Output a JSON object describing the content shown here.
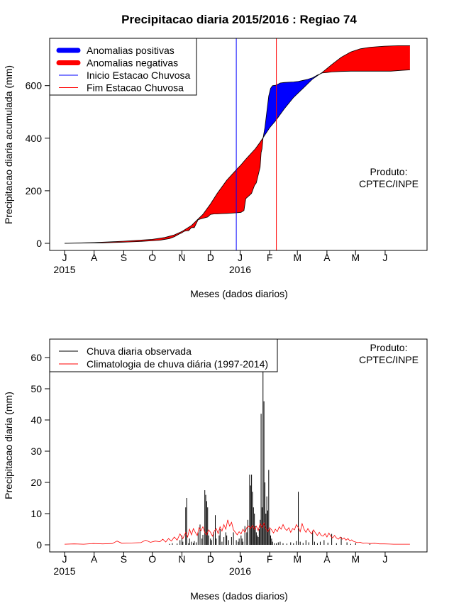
{
  "title": "Precipitacao diaria 2015/2016 : Regiao 74",
  "credit": {
    "line1": "Produto:",
    "line2": "CPTEC/INPE"
  },
  "colors": {
    "positive": "#0000ff",
    "negative": "#ff0000",
    "onset": "#0000ff",
    "end": "#ff0000",
    "observed": "#000000",
    "climatology": "#ff0000"
  },
  "month_ticks": [
    {
      "label": "J",
      "day": 0
    },
    {
      "label": "A",
      "day": 31
    },
    {
      "label": "S",
      "day": 62
    },
    {
      "label": "O",
      "day": 92
    },
    {
      "label": "N",
      "day": 123
    },
    {
      "label": "D",
      "day": 153
    },
    {
      "label": "J",
      "day": 184
    },
    {
      "label": "F",
      "day": 215
    },
    {
      "label": "M",
      "day": 244
    },
    {
      "label": "A",
      "day": 275
    },
    {
      "label": "M",
      "day": 305
    },
    {
      "label": "J",
      "day": 336
    }
  ],
  "year_labels": [
    {
      "label": "2015",
      "day": 0
    },
    {
      "label": "2016",
      "day": 184
    }
  ],
  "chart_data": [
    {
      "type": "area",
      "ylabel": "Precipitacao diaria acumulada (mm)",
      "xlabel": "Meses (dados diarios)",
      "ylim": [
        0,
        750
      ],
      "yticks": [
        0,
        200,
        400,
        600
      ],
      "legend": {
        "position": "top-left",
        "entries": [
          {
            "label": "Anomalias positivas",
            "key": "positive",
            "style": "thick"
          },
          {
            "label": "Anomalias negativas",
            "key": "negative",
            "style": "thick"
          },
          {
            "label": "Inicio Estacao Chuvosa",
            "key": "onset",
            "style": "thin"
          },
          {
            "label": "Fim Estacao Chuvosa",
            "key": "end",
            "style": "thin"
          }
        ]
      },
      "onset_day": 180,
      "end_day": 222,
      "observed_accum": [
        [
          0,
          0
        ],
        [
          40,
          2
        ],
        [
          60,
          4
        ],
        [
          80,
          7
        ],
        [
          100,
          12
        ],
        [
          110,
          18
        ],
        [
          115,
          25
        ],
        [
          120,
          35
        ],
        [
          123,
          40
        ],
        [
          125,
          45
        ],
        [
          128,
          48
        ],
        [
          130,
          48
        ],
        [
          133,
          60
        ],
        [
          136,
          60
        ],
        [
          140,
          90
        ],
        [
          142,
          92
        ],
        [
          145,
          95
        ],
        [
          150,
          100
        ],
        [
          153,
          110
        ],
        [
          157,
          112
        ],
        [
          160,
          112
        ],
        [
          165,
          113
        ],
        [
          170,
          114
        ],
        [
          180,
          116
        ],
        [
          185,
          118
        ],
        [
          188,
          125
        ],
        [
          190,
          170
        ],
        [
          193,
          180
        ],
        [
          196,
          190
        ],
        [
          199,
          220
        ],
        [
          201,
          230
        ],
        [
          203,
          260
        ],
        [
          205,
          290
        ],
        [
          206,
          345
        ],
        [
          207,
          360
        ],
        [
          208,
          400
        ],
        [
          210,
          440
        ],
        [
          212,
          500
        ],
        [
          214,
          560
        ],
        [
          216,
          590
        ],
        [
          218,
          600
        ],
        [
          222,
          602
        ],
        [
          226,
          610
        ],
        [
          230,
          612
        ],
        [
          240,
          614
        ],
        [
          245,
          616
        ],
        [
          250,
          620
        ],
        [
          255,
          624
        ],
        [
          260,
          630
        ],
        [
          265,
          640
        ],
        [
          270,
          648
        ],
        [
          275,
          650
        ],
        [
          280,
          652
        ],
        [
          290,
          654
        ],
        [
          300,
          655
        ],
        [
          320,
          655
        ],
        [
          335,
          655
        ],
        [
          342,
          655
        ],
        [
          353,
          658
        ],
        [
          362,
          660
        ]
      ],
      "climatology_accum": [
        [
          0,
          0
        ],
        [
          31,
          3
        ],
        [
          62,
          8
        ],
        [
          92,
          15
        ],
        [
          105,
          22
        ],
        [
          115,
          32
        ],
        [
          123,
          45
        ],
        [
          133,
          68
        ],
        [
          145,
          110
        ],
        [
          153,
          150
        ],
        [
          160,
          190
        ],
        [
          170,
          240
        ],
        [
          180,
          280
        ],
        [
          184,
          295
        ],
        [
          190,
          320
        ],
        [
          200,
          360
        ],
        [
          205,
          385
        ],
        [
          215,
          440
        ],
        [
          222,
          470
        ],
        [
          230,
          510
        ],
        [
          240,
          555
        ],
        [
          250,
          590
        ],
        [
          260,
          625
        ],
        [
          270,
          650
        ],
        [
          280,
          680
        ],
        [
          290,
          708
        ],
        [
          300,
          728
        ],
        [
          310,
          740
        ],
        [
          320,
          746
        ],
        [
          335,
          750
        ],
        [
          350,
          752
        ],
        [
          362,
          752
        ]
      ]
    },
    {
      "type": "bar",
      "ylabel": "Precipitacao diaria (mm)",
      "xlabel": "Meses (dados diarios)",
      "ylim": [
        0,
        65
      ],
      "yticks": [
        0,
        10,
        20,
        30,
        40,
        50,
        60
      ],
      "legend": {
        "position": "top-left",
        "entries": [
          {
            "label": "Chuva diaria observada",
            "key": "observed",
            "style": "thin"
          },
          {
            "label": "Climatologia de chuva diária (1997-2014)",
            "key": "climatology",
            "style": "thin"
          }
        ]
      },
      "observed_daily": [
        [
          110,
          0.3
        ],
        [
          113,
          0.5
        ],
        [
          118,
          0.4
        ],
        [
          121,
          1.5
        ],
        [
          123,
          3
        ],
        [
          124,
          1
        ],
        [
          127,
          12
        ],
        [
          128,
          15
        ],
        [
          130,
          0.5
        ],
        [
          131,
          2
        ],
        [
          133,
          1
        ],
        [
          135,
          0.6
        ],
        [
          136,
          1.2
        ],
        [
          138,
          0.8
        ],
        [
          140,
          4
        ],
        [
          142,
          6.5
        ],
        [
          144,
          2
        ],
        [
          145,
          3.2
        ],
        [
          147,
          17.5
        ],
        [
          148,
          16
        ],
        [
          149,
          14
        ],
        [
          150,
          12
        ],
        [
          151,
          3
        ],
        [
          153,
          2
        ],
        [
          154,
          1.5
        ],
        [
          156,
          4
        ],
        [
          158,
          9.5
        ],
        [
          159,
          2
        ],
        [
          162,
          3
        ],
        [
          163,
          5
        ],
        [
          165,
          1
        ],
        [
          167,
          2.5
        ],
        [
          169,
          4
        ],
        [
          170,
          3
        ],
        [
          172,
          1.5
        ],
        [
          175,
          2.5
        ],
        [
          177,
          4
        ],
        [
          180,
          1.5
        ],
        [
          182,
          1
        ],
        [
          183,
          2
        ],
        [
          185,
          3
        ],
        [
          186,
          2
        ],
        [
          187,
          1
        ],
        [
          189,
          6
        ],
        [
          191,
          4
        ],
        [
          192,
          8
        ],
        [
          194,
          22.5
        ],
        [
          195,
          19
        ],
        [
          196,
          22.5
        ],
        [
          197,
          17
        ],
        [
          198,
          12
        ],
        [
          199,
          10
        ],
        [
          200,
          6
        ],
        [
          201,
          4
        ],
        [
          202,
          3
        ],
        [
          203,
          2.5
        ],
        [
          204,
          5
        ],
        [
          205,
          8
        ],
        [
          206,
          42
        ],
        [
          207,
          12
        ],
        [
          208,
          58
        ],
        [
          209,
          46
        ],
        [
          210,
          20
        ],
        [
          211,
          10
        ],
        [
          212,
          15.5
        ],
        [
          213,
          11
        ],
        [
          214,
          24
        ],
        [
          215,
          5
        ],
        [
          216,
          3
        ],
        [
          217,
          2
        ],
        [
          218,
          1
        ],
        [
          220,
          0.5
        ],
        [
          222,
          0.5
        ],
        [
          224,
          0.8
        ],
        [
          226,
          1
        ],
        [
          229,
          0.5
        ],
        [
          233,
          0.4
        ],
        [
          237,
          0.8
        ],
        [
          240,
          0.5
        ],
        [
          243,
          1.2
        ],
        [
          245,
          17
        ],
        [
          247,
          1
        ],
        [
          250,
          0.6
        ],
        [
          253,
          1.5
        ],
        [
          256,
          0.8
        ],
        [
          260,
          4.5
        ],
        [
          262,
          1
        ],
        [
          265,
          0.5
        ],
        [
          268,
          1
        ],
        [
          272,
          1.5
        ],
        [
          276,
          0.7
        ],
        [
          280,
          3.5
        ],
        [
          285,
          0.5
        ],
        [
          290,
          2.5
        ],
        [
          296,
          0.8
        ],
        [
          300,
          0.3
        ],
        [
          305,
          0.6
        ],
        [
          320,
          0.3
        ]
      ],
      "climatology_daily": [
        [
          0,
          0.2
        ],
        [
          10,
          0.3
        ],
        [
          20,
          0.2
        ],
        [
          30,
          0.4
        ],
        [
          40,
          0.3
        ],
        [
          50,
          0.4
        ],
        [
          55,
          1.2
        ],
        [
          60,
          0.5
        ],
        [
          70,
          0.6
        ],
        [
          80,
          0.7
        ],
        [
          85,
          1.5
        ],
        [
          90,
          0.8
        ],
        [
          95,
          1.2
        ],
        [
          100,
          1.0
        ],
        [
          103,
          1.8
        ],
        [
          106,
          0.9
        ],
        [
          109,
          2.0
        ],
        [
          112,
          1.2
        ],
        [
          115,
          2.5
        ],
        [
          118,
          1.5
        ],
        [
          121,
          3.5
        ],
        [
          124,
          2.0
        ],
        [
          127,
          4.0
        ],
        [
          129,
          2.5
        ],
        [
          131,
          5.0
        ],
        [
          133,
          3.2
        ],
        [
          135,
          5.2
        ],
        [
          137,
          4.0
        ],
        [
          139,
          3.0
        ],
        [
          141,
          5.5
        ],
        [
          143,
          4.5
        ],
        [
          145,
          5.8
        ],
        [
          147,
          4.0
        ],
        [
          149,
          3.2
        ],
        [
          151,
          4.8
        ],
        [
          153,
          4.0
        ],
        [
          155,
          2.8
        ],
        [
          157,
          4.5
        ],
        [
          159,
          5.2
        ],
        [
          161,
          3.6
        ],
        [
          163,
          5.8
        ],
        [
          165,
          4.4
        ],
        [
          167,
          6.5
        ],
        [
          169,
          5.0
        ],
        [
          171,
          8.0
        ],
        [
          173,
          6.0
        ],
        [
          175,
          7.2
        ],
        [
          177,
          4.8
        ],
        [
          179,
          4.0
        ],
        [
          181,
          3.2
        ],
        [
          183,
          4.2
        ],
        [
          185,
          3.5
        ],
        [
          187,
          5.0
        ],
        [
          189,
          4.0
        ],
        [
          191,
          5.5
        ],
        [
          193,
          6.0
        ],
        [
          195,
          5.2
        ],
        [
          197,
          6.2
        ],
        [
          199,
          5.0
        ],
        [
          201,
          6.0
        ],
        [
          203,
          4.6
        ],
        [
          205,
          6.8
        ],
        [
          207,
          5.5
        ],
        [
          209,
          7.0
        ],
        [
          211,
          5.2
        ],
        [
          213,
          4.2
        ],
        [
          215,
          5.5
        ],
        [
          217,
          4.8
        ],
        [
          219,
          3.8
        ],
        [
          221,
          5.0
        ],
        [
          223,
          4.2
        ],
        [
          225,
          5.8
        ],
        [
          227,
          5.0
        ],
        [
          229,
          6.5
        ],
        [
          231,
          5.2
        ],
        [
          233,
          4.6
        ],
        [
          235,
          5.5
        ],
        [
          237,
          4.0
        ],
        [
          239,
          5.2
        ],
        [
          241,
          4.8
        ],
        [
          243,
          6.5
        ],
        [
          245,
          5.5
        ],
        [
          247,
          4.2
        ],
        [
          249,
          6.8
        ],
        [
          251,
          5.0
        ],
        [
          253,
          4.0
        ],
        [
          255,
          5.2
        ],
        [
          257,
          4.2
        ],
        [
          259,
          3.5
        ],
        [
          261,
          4.8
        ],
        [
          263,
          3.8
        ],
        [
          265,
          3.0
        ],
        [
          267,
          4.0
        ],
        [
          269,
          3.0
        ],
        [
          271,
          2.8
        ],
        [
          273,
          3.6
        ],
        [
          275,
          2.5
        ],
        [
          277,
          3.8
        ],
        [
          279,
          2.8
        ],
        [
          281,
          2.2
        ],
        [
          283,
          3.0
        ],
        [
          285,
          2.2
        ],
        [
          287,
          1.8
        ],
        [
          289,
          2.5
        ],
        [
          291,
          1.8
        ],
        [
          293,
          2.2
        ],
        [
          295,
          1.5
        ],
        [
          297,
          2.0
        ],
        [
          299,
          1.3
        ],
        [
          301,
          1.6
        ],
        [
          303,
          1.1
        ],
        [
          305,
          0.9
        ],
        [
          307,
          0.7
        ],
        [
          310,
          0.8
        ],
        [
          313,
          0.5
        ],
        [
          316,
          0.6
        ],
        [
          320,
          0.4
        ],
        [
          325,
          0.5
        ],
        [
          330,
          0.3
        ],
        [
          335,
          0.3
        ],
        [
          340,
          0.25
        ],
        [
          345,
          0.2
        ],
        [
          350,
          0.2
        ],
        [
          355,
          0.2
        ],
        [
          362,
          0.2
        ]
      ]
    }
  ]
}
